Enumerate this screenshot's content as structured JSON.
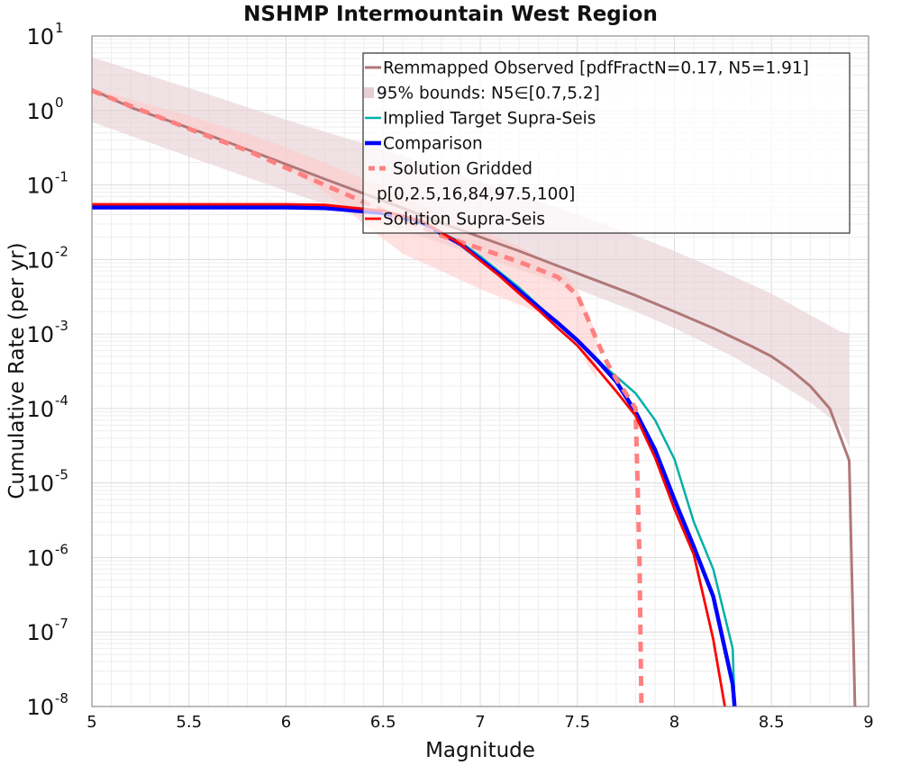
{
  "chart_data": {
    "type": "line",
    "title": "NSHMP Intermountain West Region",
    "xlabel": "Magnitude",
    "ylabel": "Cumulative Rate (per yr)",
    "xlim": [
      5,
      9
    ],
    "ylim": [
      1e-08,
      10
    ],
    "yscale": "log",
    "grid": true,
    "legend_position": "top-right",
    "x_ticks": [
      "5",
      "5.5",
      "6",
      "6.5",
      "7",
      "7.5",
      "8",
      "8.5",
      "9"
    ],
    "y_ticks": [
      {
        "base": "10",
        "exp": "1"
      },
      {
        "base": "10",
        "exp": "0"
      },
      {
        "base": "10",
        "exp": "-1"
      },
      {
        "base": "10",
        "exp": "-2"
      },
      {
        "base": "10",
        "exp": "-3"
      },
      {
        "base": "10",
        "exp": "-4"
      },
      {
        "base": "10",
        "exp": "-5"
      },
      {
        "base": "10",
        "exp": "-6"
      },
      {
        "base": "10",
        "exp": "-7"
      },
      {
        "base": "10",
        "exp": "-8"
      }
    ],
    "legend": [
      "Remmapped Observed [pdfFractN=0.17, N5=1.91]",
      "95% bounds: N5∈[0.7,5.2]",
      "Implied Target Supra-Seis",
      "Comparison",
      "Solution Gridded",
      "p[0,2.5,16,84,97.5,100]",
      "Solution Supra-Seis"
    ],
    "colors": {
      "observed": "#b07878",
      "bounds": "#e6cfd2",
      "target": "#00b0a8",
      "comparison": "#0000ff",
      "gridded": "#ff8080",
      "percentile": "#ffc9c9",
      "supra": "#ff0000"
    },
    "bounds_band": {
      "x": [
        5.0,
        5.5,
        6.0,
        6.5,
        7.0,
        7.5,
        7.8,
        8.0,
        8.3,
        8.5,
        8.7,
        8.85,
        8.9
      ],
      "upper": [
        5.2,
        2.0,
        0.75,
        0.3,
        0.11,
        0.04,
        0.021,
        0.013,
        0.006,
        0.0035,
        0.0018,
        0.0011,
        0.001
      ],
      "lower": [
        0.7,
        0.24,
        0.083,
        0.03,
        0.011,
        0.004,
        0.002,
        0.0012,
        0.0005,
        0.00025,
        0.00012,
        6e-05,
        3e-05
      ]
    },
    "percentile_band": {
      "x": [
        5.0,
        5.5,
        5.9,
        6.2,
        6.4,
        6.6,
        6.8,
        7.0,
        7.2,
        7.4,
        7.5,
        7.55,
        7.6
      ],
      "upper": [
        2.0,
        0.85,
        0.4,
        0.2,
        0.12,
        0.07,
        0.04,
        0.025,
        0.015,
        0.008,
        0.004,
        0.002,
        0.001
      ],
      "lower": [
        1.7,
        0.6,
        0.25,
        0.08,
        0.03,
        0.012,
        0.007,
        0.004,
        0.0025,
        0.0015,
        0.0008,
        0.0004,
        0.00025
      ]
    },
    "series": [
      {
        "name": "Remmapped Observed [pdfFractN=0.17, N5=1.91]",
        "color_key": "observed",
        "x": [
          5.0,
          5.2,
          5.4,
          5.6,
          5.8,
          6.0,
          6.2,
          6.4,
          6.6,
          6.8,
          7.0,
          7.2,
          7.4,
          7.6,
          7.8,
          8.0,
          8.2,
          8.4,
          8.5,
          8.6,
          8.7,
          8.8,
          8.9,
          8.93
        ],
        "y": [
          1.91,
          1.1,
          0.72,
          0.47,
          0.3,
          0.19,
          0.12,
          0.077,
          0.049,
          0.031,
          0.02,
          0.013,
          0.0082,
          0.0052,
          0.0033,
          0.002,
          0.0012,
          0.00068,
          0.0005,
          0.00033,
          0.0002,
          0.0001,
          2e-05,
          1e-08
        ]
      },
      {
        "name": "Implied Target Supra-Seis",
        "color_key": "target",
        "x": [
          5.0,
          6.0,
          6.2,
          6.5,
          6.7,
          6.9,
          7.0,
          7.1,
          7.2,
          7.3,
          7.4,
          7.5,
          7.6,
          7.7,
          7.8,
          7.9,
          8.0,
          8.1,
          8.2,
          8.3,
          8.31
        ],
        "y": [
          0.052,
          0.052,
          0.05,
          0.042,
          0.031,
          0.017,
          0.011,
          0.0068,
          0.0042,
          0.0024,
          0.0014,
          0.00085,
          0.00045,
          0.00027,
          0.00016,
          7e-05,
          2.1e-05,
          3e-06,
          7e-07,
          6e-08,
          1e-08
        ]
      },
      {
        "name": "Comparison",
        "color_key": "comparison",
        "x": [
          5.0,
          6.0,
          6.2,
          6.5,
          6.7,
          6.9,
          7.0,
          7.1,
          7.2,
          7.3,
          7.4,
          7.5,
          7.6,
          7.7,
          7.8,
          7.9,
          8.0,
          8.1,
          8.2,
          8.3,
          8.31
        ],
        "y": [
          0.05,
          0.05,
          0.049,
          0.042,
          0.031,
          0.016,
          0.01,
          0.0063,
          0.0038,
          0.0023,
          0.0014,
          0.00082,
          0.00045,
          0.00023,
          9e-05,
          2.8e-05,
          6e-06,
          1.4e-06,
          3e-07,
          2e-08,
          1e-08
        ]
      },
      {
        "name": "Solution Gridded",
        "color_key": "gridded",
        "x": [
          5.0,
          5.2,
          5.4,
          5.6,
          5.8,
          6.0,
          6.2,
          6.4,
          6.6,
          6.8,
          7.0,
          7.2,
          7.4,
          7.5,
          7.55,
          7.6,
          7.65,
          7.7,
          7.75,
          7.8,
          7.81,
          7.82,
          7.83
        ],
        "y": [
          1.85,
          1.15,
          0.72,
          0.45,
          0.29,
          0.17,
          0.1,
          0.059,
          0.035,
          0.021,
          0.014,
          0.0093,
          0.0058,
          0.0033,
          0.0017,
          0.00082,
          0.00043,
          0.00025,
          0.00016,
          0.0001,
          1e-05,
          1e-06,
          1e-08
        ]
      },
      {
        "name": "Solution Supra-Seis",
        "color_key": "supra",
        "x": [
          5.0,
          6.0,
          6.2,
          6.5,
          6.7,
          6.9,
          7.0,
          7.1,
          7.2,
          7.3,
          7.4,
          7.5,
          7.6,
          7.7,
          7.8,
          7.9,
          8.0,
          8.1,
          8.2,
          8.26
        ],
        "y": [
          0.055,
          0.055,
          0.054,
          0.045,
          0.033,
          0.016,
          0.0097,
          0.006,
          0.0035,
          0.0021,
          0.0012,
          0.0007,
          0.00035,
          0.00017,
          8e-05,
          2.2e-05,
          4.5e-06,
          1.1e-06,
          8e-08,
          1e-08
        ]
      }
    ]
  }
}
